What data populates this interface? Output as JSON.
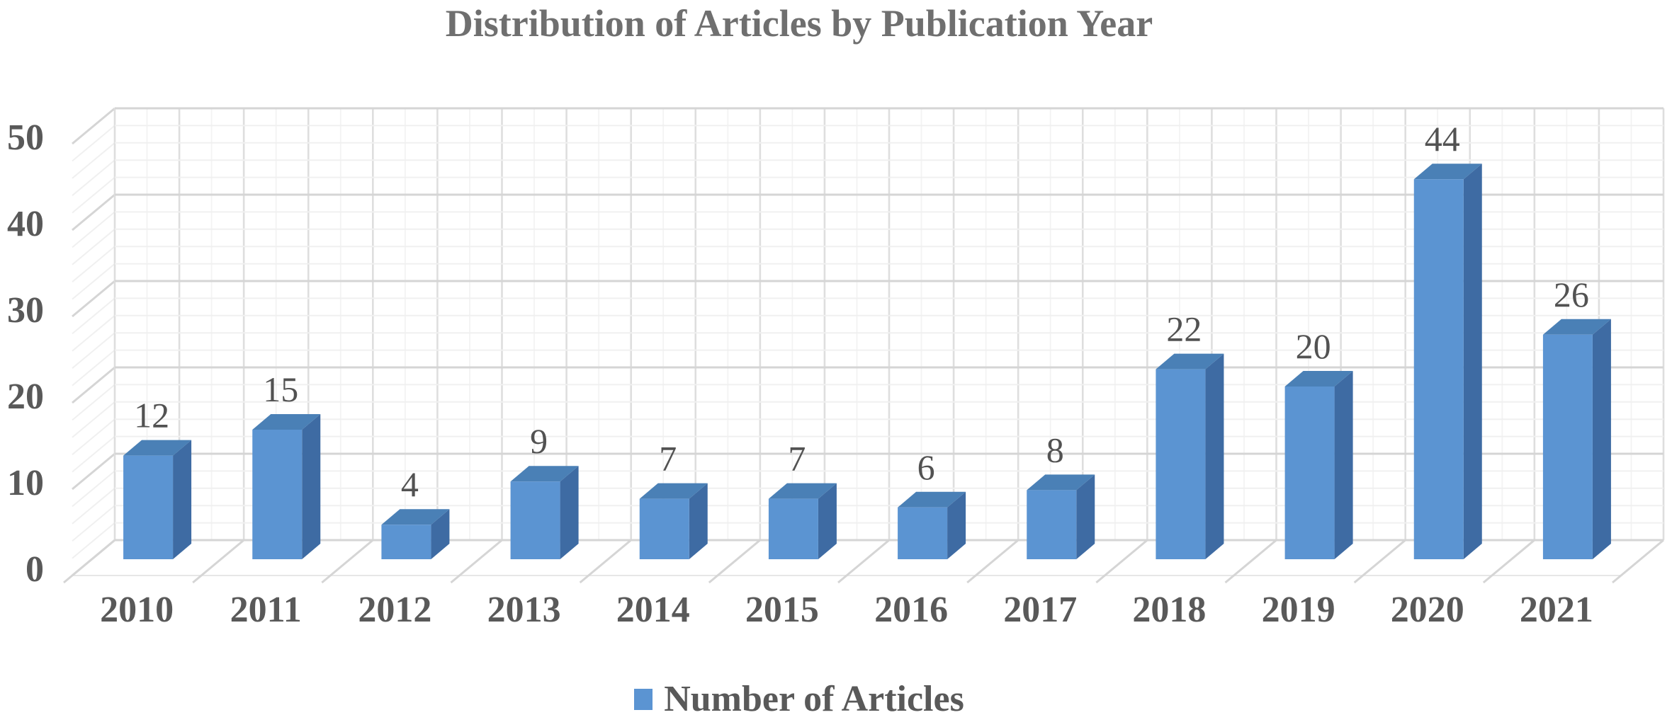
{
  "chart_data": {
    "type": "bar",
    "style": "3d-column",
    "title": "Distribution of Articles by Publication Year",
    "categories": [
      "2010",
      "2011",
      "2012",
      "2013",
      "2014",
      "2015",
      "2016",
      "2017",
      "2018",
      "2019",
      "2020",
      "2021"
    ],
    "series": [
      {
        "name": "Number of Articles",
        "values": [
          12,
          15,
          4,
          9,
          7,
          7,
          6,
          8,
          22,
          20,
          44,
          26
        ]
      }
    ],
    "data_labels_shown": true,
    "ylim": [
      0,
      50
    ],
    "y_major_ticks": [
      0,
      10,
      20,
      30,
      40,
      50
    ],
    "y_minor_step": 2,
    "grid": "major-and-minor",
    "legend_position": "bottom",
    "colors": {
      "bar_front": "#5b94d2",
      "bar_top": "#4a80b6",
      "bar_side": "#3e6ba3",
      "major_grid": "#d5d5d5",
      "minor_grid": "#f0f0f0",
      "vertical_grid_dark": "#dedede",
      "vertical_grid_light": "#f3f3f3",
      "axis_text": "#595959",
      "data_label_text": "#525252",
      "title_text": "#6f6f6f"
    }
  }
}
